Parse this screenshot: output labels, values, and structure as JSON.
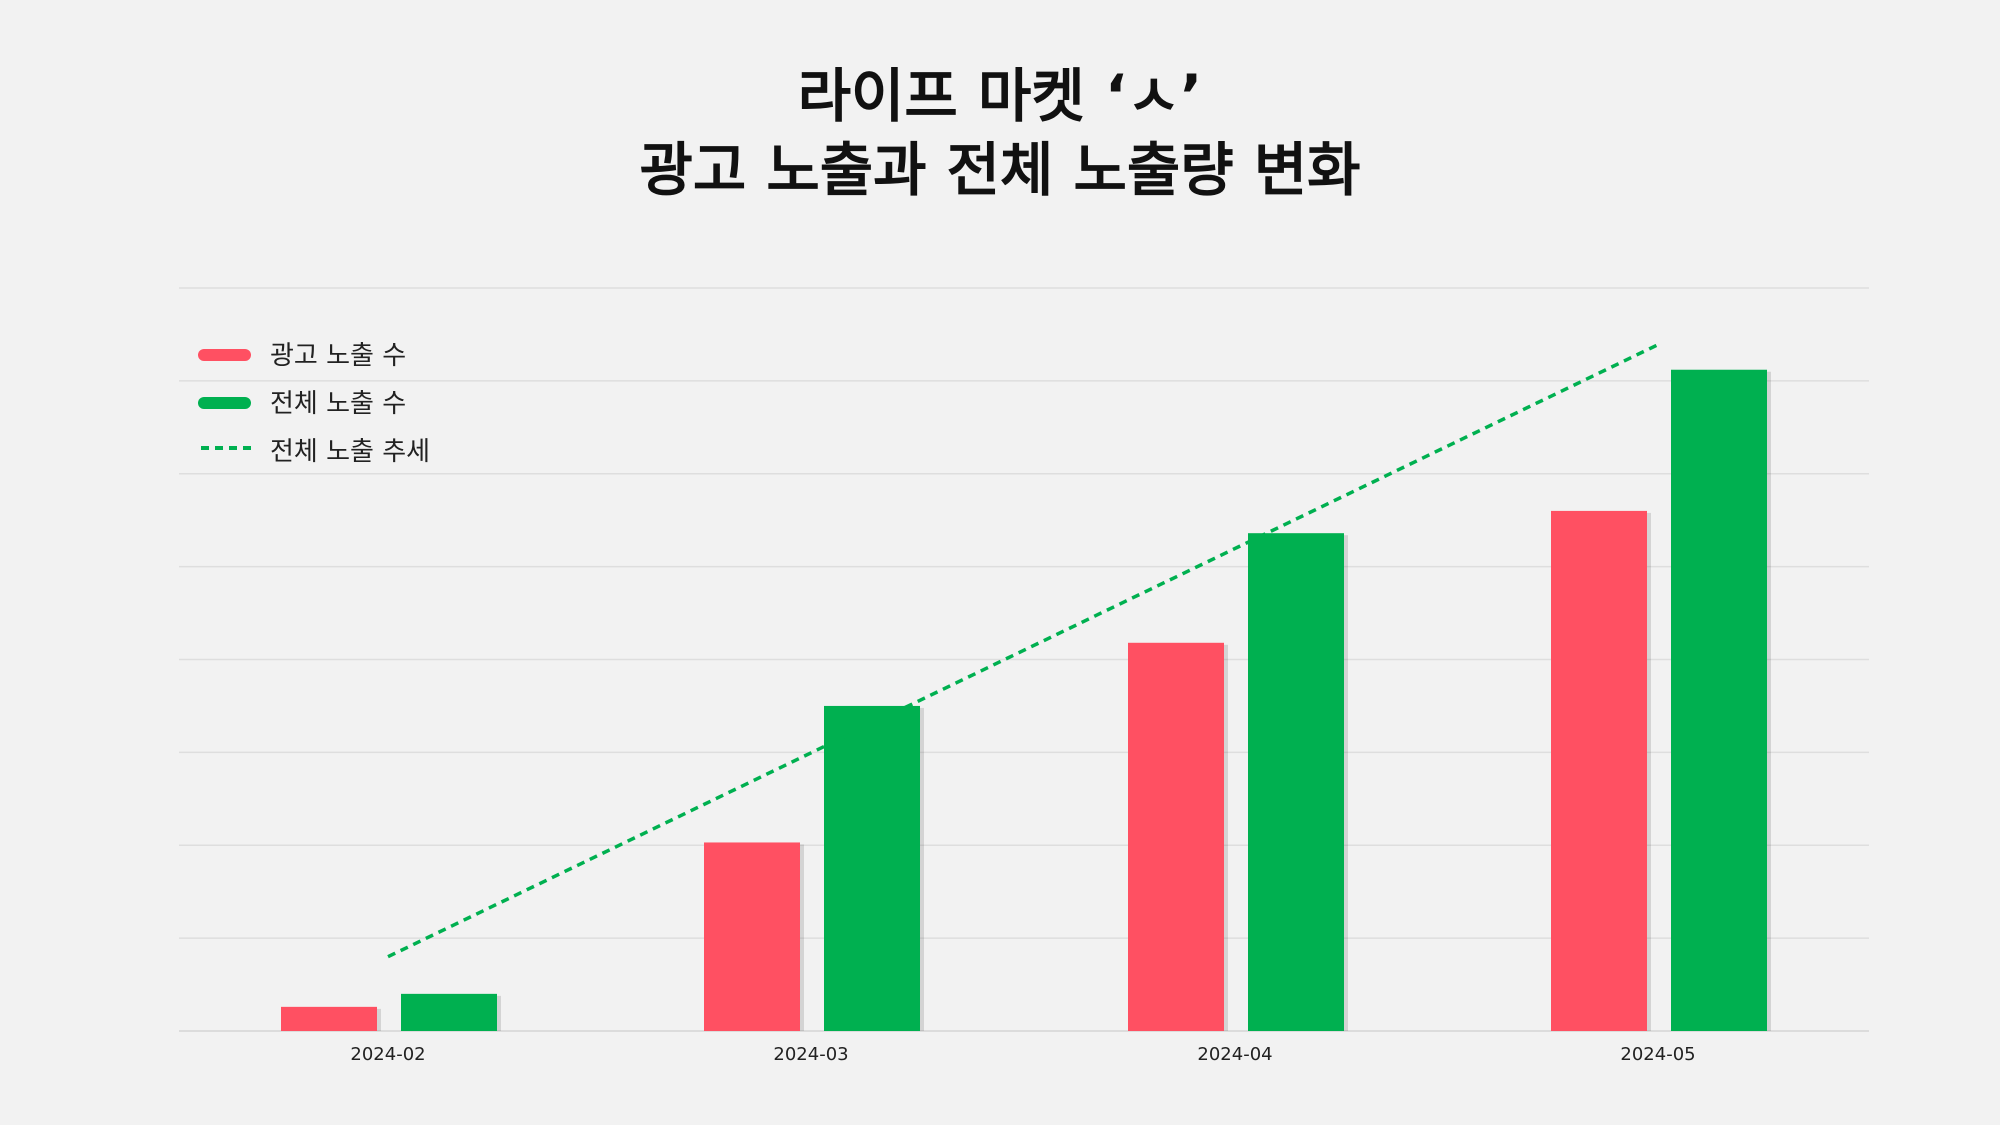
{
  "chart_data": {
    "type": "bar",
    "title": [
      "라이프 마켓 ‘ㅅ’",
      "광고 노출과 전체 노출량 변화"
    ],
    "xlabel": "",
    "ylabel": "",
    "categories": [
      "2024-02",
      "2024-03",
      "2024-04",
      "2024-05"
    ],
    "series": [
      {
        "name": "광고 노출 수",
        "type": "bar",
        "color": "#ff5062",
        "values": [
          0.26,
          2.03,
          4.18,
          5.6
        ]
      },
      {
        "name": "전체 노출 수",
        "type": "bar",
        "color": "#00b050",
        "values": [
          0.4,
          3.5,
          5.36,
          7.12
        ]
      },
      {
        "name": "전체 노출 추세",
        "type": "line",
        "style": "dashed",
        "color": "#00b050",
        "values": [
          0.8,
          null,
          null,
          7.39
        ]
      }
    ],
    "ylim": [
      0,
      8
    ],
    "y_tick_labels_shown": false,
    "grid": true,
    "legend": "top-left"
  }
}
